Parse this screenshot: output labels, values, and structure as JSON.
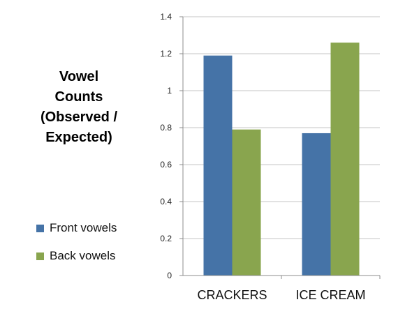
{
  "chart_data": {
    "type": "bar",
    "title": "",
    "ylabel": "Vowel Counts (Observed / Expected)",
    "ylabel_lines": [
      "Vowel",
      "Counts",
      "(Observed /",
      "Expected)"
    ],
    "xlabel": "",
    "categories": [
      "CRACKERS",
      "ICE CREAM"
    ],
    "series": [
      {
        "name": "Front vowels",
        "values": [
          1.19,
          0.77
        ],
        "color": "#4573a7"
      },
      {
        "name": "Back vowels",
        "values": [
          0.79,
          1.26
        ],
        "color": "#89a54e"
      }
    ],
    "ylim": [
      0,
      1.4
    ],
    "yticks": [
      "0",
      "0.2",
      "0.4",
      "0.6",
      "0.8",
      "1",
      "1.2",
      "1.4"
    ],
    "grid": true,
    "legend_position": "left"
  }
}
